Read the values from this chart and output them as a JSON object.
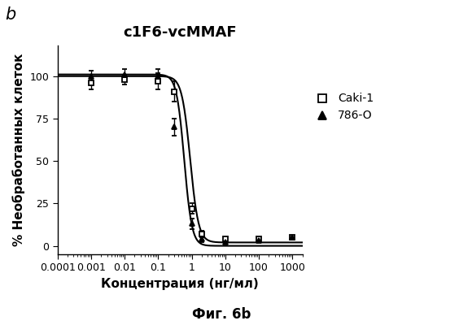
{
  "title": "c1F6-vcMMAF",
  "xlabel": "Концентрация (нг/мл)",
  "ylabel": "% Необработанных клеток",
  "caption": "Фиг. 6b",
  "label_b": "b",
  "series": [
    {
      "name": "Caki-1",
      "marker": "s",
      "color": "#000000",
      "ec50": 0.9,
      "hill": 3.5,
      "top": 100,
      "bottom": 2,
      "x_data": [
        0.001,
        0.01,
        0.1,
        0.3,
        1.0,
        2.0,
        10,
        100,
        1000
      ],
      "y_data": [
        96,
        98,
        97,
        91,
        22,
        7,
        4,
        4,
        5
      ],
      "y_err": [
        4,
        3,
        5,
        6,
        3,
        2,
        1,
        1,
        1
      ]
    },
    {
      "name": "786-O",
      "marker": "^",
      "color": "#000000",
      "ec50": 0.6,
      "hill": 3.8,
      "top": 101,
      "bottom": 0,
      "x_data": [
        0.001,
        0.01,
        0.1,
        0.3,
        1.0,
        2.0,
        10,
        100,
        1000
      ],
      "y_data": [
        100,
        101,
        100,
        70,
        13,
        4,
        2,
        3,
        5
      ],
      "y_err": [
        3,
        3,
        4,
        5,
        3,
        2,
        1,
        1,
        1
      ]
    }
  ],
  "xlim": [
    0.0001,
    2000
  ],
  "ylim": [
    -5,
    118
  ],
  "yticks": [
    0,
    25,
    50,
    75,
    100
  ],
  "background_color": "#ffffff",
  "title_fontsize": 13,
  "axis_label_fontsize": 11,
  "tick_fontsize": 9,
  "legend_fontsize": 10,
  "caption_fontsize": 12
}
